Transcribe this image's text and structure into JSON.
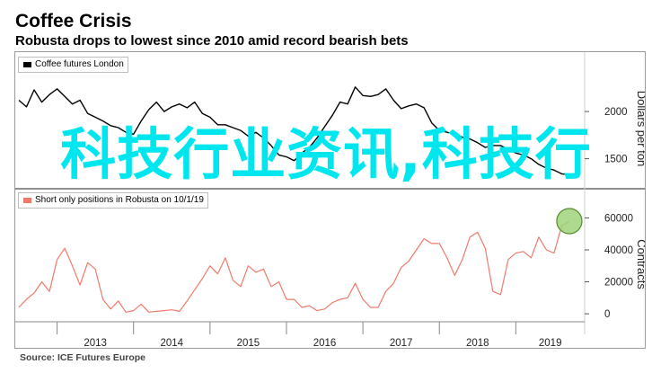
{
  "header": {
    "title": "Coffee Crisis",
    "subtitle": "Robusta drops to lowest since 2010 amid record bearish bets"
  },
  "source": "Source: ICE Futures Europe",
  "overlay_text": "科技行业资讯,科技行",
  "colors": {
    "price_line": "#000000",
    "positions_line": "#f07a6a",
    "highlight": "#9fd47a",
    "highlight_border": "#558b2f"
  },
  "chart_data": [
    {
      "type": "line",
      "legend": "Coffee futures London",
      "ylabel": "Dollars per ton",
      "ylim": [
        1220,
        2420
      ],
      "yticks": [
        1500,
        2000
      ],
      "xlim": [
        2012.5,
        2019.9
      ],
      "xticks": [
        2013,
        2014,
        2015,
        2016,
        2017,
        2018,
        2019
      ],
      "grid": false,
      "series": [
        {
          "name": "Coffee futures London",
          "x": [
            2012.5,
            2012.6,
            2012.7,
            2012.8,
            2012.9,
            2013.0,
            2013.1,
            2013.2,
            2013.3,
            2013.4,
            2013.5,
            2013.6,
            2013.7,
            2013.8,
            2013.9,
            2014.0,
            2014.1,
            2014.2,
            2014.3,
            2014.4,
            2014.5,
            2014.6,
            2014.7,
            2014.8,
            2014.9,
            2015.0,
            2015.1,
            2015.2,
            2015.3,
            2015.4,
            2015.5,
            2015.6,
            2015.7,
            2015.8,
            2015.9,
            2016.0,
            2016.1,
            2016.2,
            2016.3,
            2016.4,
            2016.5,
            2016.6,
            2016.7,
            2016.8,
            2016.9,
            2017.0,
            2017.1,
            2017.2,
            2017.3,
            2017.4,
            2017.5,
            2017.6,
            2017.7,
            2017.8,
            2017.9,
            2018.0,
            2018.1,
            2018.2,
            2018.3,
            2018.4,
            2018.5,
            2018.6,
            2018.7,
            2018.8,
            2018.9,
            2019.0,
            2019.1,
            2019.2,
            2019.3,
            2019.4,
            2019.5,
            2019.6,
            2019.7
          ],
          "values": [
            2120,
            2050,
            2230,
            2100,
            2180,
            2240,
            2160,
            2080,
            2120,
            1980,
            1940,
            1900,
            1850,
            1830,
            1780,
            1760,
            1900,
            2020,
            2100,
            2000,
            2050,
            2080,
            2040,
            2100,
            1980,
            1940,
            1860,
            1860,
            1830,
            1800,
            1740,
            1780,
            1720,
            1640,
            1540,
            1520,
            1480,
            1560,
            1620,
            1720,
            1840,
            1960,
            2100,
            2080,
            2260,
            2170,
            2160,
            2180,
            2240,
            2120,
            2030,
            2060,
            2080,
            2040,
            1880,
            1800,
            1780,
            1760,
            1730,
            1710,
            1670,
            1620,
            1640,
            1640,
            1600,
            1560,
            1540,
            1500,
            1440,
            1400,
            1380,
            1340,
            1330
          ]
        }
      ]
    },
    {
      "type": "line",
      "legend": "Short only positions in Robusta on 10/1/19",
      "ylabel": "Contracts",
      "ylim": [
        -5000,
        67000
      ],
      "yticks": [
        0,
        20000,
        40000,
        60000
      ],
      "xlim": [
        2012.5,
        2019.9
      ],
      "xticks": [
        2013,
        2014,
        2015,
        2016,
        2017,
        2018,
        2019
      ],
      "grid": false,
      "series": [
        {
          "name": "Short only positions in Robusta on 10/1/19",
          "x": [
            2012.5,
            2012.6,
            2012.7,
            2012.8,
            2012.9,
            2013.0,
            2013.1,
            2013.2,
            2013.3,
            2013.4,
            2013.5,
            2013.6,
            2013.7,
            2013.8,
            2013.9,
            2014.0,
            2014.1,
            2014.2,
            2014.3,
            2014.4,
            2014.5,
            2014.6,
            2014.7,
            2014.8,
            2014.9,
            2015.0,
            2015.1,
            2015.2,
            2015.3,
            2015.4,
            2015.5,
            2015.6,
            2015.7,
            2015.8,
            2015.9,
            2016.0,
            2016.1,
            2016.2,
            2016.3,
            2016.4,
            2016.5,
            2016.6,
            2016.7,
            2016.8,
            2016.9,
            2017.0,
            2017.1,
            2017.2,
            2017.3,
            2017.4,
            2017.5,
            2017.6,
            2017.7,
            2017.8,
            2017.9,
            2018.0,
            2018.1,
            2018.2,
            2018.3,
            2018.4,
            2018.5,
            2018.6,
            2018.7,
            2018.8,
            2018.9,
            2019.0,
            2019.1,
            2019.2,
            2019.3,
            2019.4,
            2019.5,
            2019.6,
            2019.7
          ],
          "values": [
            4000,
            9000,
            13000,
            20000,
            14000,
            34000,
            41000,
            30000,
            18000,
            32000,
            28000,
            9000,
            3000,
            8000,
            1000,
            2000,
            6000,
            1000,
            1500,
            2000,
            2500,
            1500,
            8000,
            15000,
            22000,
            30000,
            25000,
            35000,
            21000,
            17000,
            30000,
            26000,
            28000,
            17000,
            20000,
            9000,
            9000,
            4000,
            5000,
            2000,
            3000,
            7000,
            9000,
            10000,
            19000,
            9000,
            4000,
            4000,
            14000,
            19000,
            29000,
            33000,
            40000,
            47000,
            44000,
            44000,
            35000,
            24000,
            34000,
            48000,
            51000,
            41000,
            14000,
            12000,
            34000,
            38000,
            39000,
            35000,
            48000,
            40000,
            38000,
            55000,
            58000
          ]
        }
      ]
    }
  ]
}
